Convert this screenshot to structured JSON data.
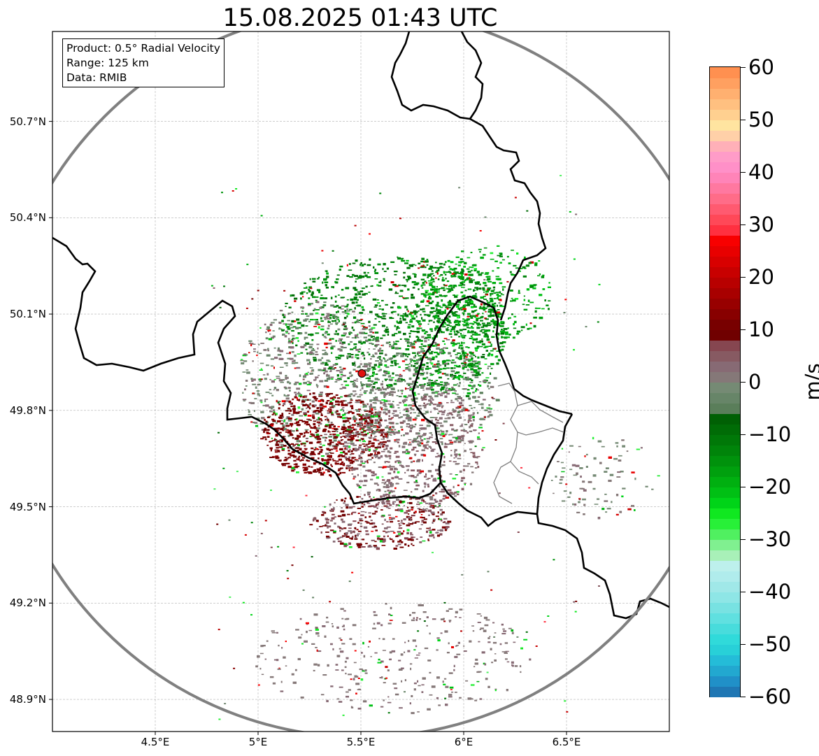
{
  "title": "15.08.2025 01:43 UTC",
  "info": {
    "product": "Product: 0.5° Radial Velocity",
    "range": "Range: 125 km",
    "data": "Data: RMIB"
  },
  "map": {
    "lon_range": [
      4.0,
      7.0
    ],
    "lat_range": [
      48.8,
      50.98
    ],
    "lon_ticks": [
      {
        "value": 4.5,
        "label": "4.5°E"
      },
      {
        "value": 5.0,
        "label": "5°E"
      },
      {
        "value": 5.5,
        "label": "5.5°E"
      },
      {
        "value": 6.0,
        "label": "6°E"
      },
      {
        "value": 6.5,
        "label": "6.5°E"
      }
    ],
    "lat_ticks": [
      {
        "value": 50.7,
        "label": "50.7°N"
      },
      {
        "value": 50.4,
        "label": "50.4°N"
      },
      {
        "value": 50.1,
        "label": "50.1°N"
      },
      {
        "value": 49.8,
        "label": "49.8°N"
      },
      {
        "value": 49.5,
        "label": "49.5°N"
      },
      {
        "value": 49.2,
        "label": "49.2°N"
      },
      {
        "value": 48.9,
        "label": "48.9°N"
      }
    ],
    "radar_site": {
      "lon": 5.505,
      "lat": 49.915
    },
    "range_ring_color": "#808080",
    "site_color": "#e01010",
    "border_color": "#000000",
    "region_border_color": "#808080"
  },
  "colorbar": {
    "unit": "m/s",
    "vmin": -60,
    "vmax": 60,
    "ticks": [
      {
        "value": 60,
        "label": "60"
      },
      {
        "value": 50,
        "label": "50"
      },
      {
        "value": 40,
        "label": "40"
      },
      {
        "value": 30,
        "label": "30"
      },
      {
        "value": 20,
        "label": "20"
      },
      {
        "value": 10,
        "label": "10"
      },
      {
        "value": 0,
        "label": "0"
      },
      {
        "value": -10,
        "label": "−10"
      },
      {
        "value": -20,
        "label": "−20"
      },
      {
        "value": -30,
        "label": "−30"
      },
      {
        "value": -40,
        "label": "−40"
      },
      {
        "value": -50,
        "label": "−50"
      },
      {
        "value": -60,
        "label": "−60"
      }
    ],
    "stops": [
      {
        "from": -60,
        "to": -58,
        "color": "#1f77b4"
      },
      {
        "from": -58,
        "to": -56,
        "color": "#2090c8"
      },
      {
        "from": -56,
        "to": -54,
        "color": "#22a8d0"
      },
      {
        "from": -54,
        "to": -52,
        "color": "#24bcd8"
      },
      {
        "from": -52,
        "to": -50,
        "color": "#28d0d8"
      },
      {
        "from": -50,
        "to": -48,
        "color": "#30dada"
      },
      {
        "from": -48,
        "to": -46,
        "color": "#48dcdc"
      },
      {
        "from": -46,
        "to": -44,
        "color": "#60e0e0"
      },
      {
        "from": -44,
        "to": -42,
        "color": "#78e2e2"
      },
      {
        "from": -42,
        "to": -40,
        "color": "#8ee6e6"
      },
      {
        "from": -40,
        "to": -38,
        "color": "#a0e8e8"
      },
      {
        "from": -38,
        "to": -36,
        "color": "#b0ecec"
      },
      {
        "from": -36,
        "to": -34,
        "color": "#bdf0ec"
      },
      {
        "from": -34,
        "to": -32,
        "color": "#a8f0b8"
      },
      {
        "from": -32,
        "to": -30,
        "color": "#80f090"
      },
      {
        "from": -30,
        "to": -28,
        "color": "#50f060"
      },
      {
        "from": -28,
        "to": -26,
        "color": "#28f038"
      },
      {
        "from": -26,
        "to": -24,
        "color": "#10e820"
      },
      {
        "from": -24,
        "to": -22,
        "color": "#00d418"
      },
      {
        "from": -22,
        "to": -20,
        "color": "#00c014"
      },
      {
        "from": -20,
        "to": -18,
        "color": "#00b010"
      },
      {
        "from": -18,
        "to": -16,
        "color": "#00a00e"
      },
      {
        "from": -16,
        "to": -14,
        "color": "#00920c"
      },
      {
        "from": -14,
        "to": -12,
        "color": "#00840a"
      },
      {
        "from": -12,
        "to": -10,
        "color": "#007808"
      },
      {
        "from": -10,
        "to": -8,
        "color": "#006c06"
      },
      {
        "from": -8,
        "to": -6,
        "color": "#006004"
      },
      {
        "from": -6,
        "to": -4,
        "color": "#5a7e5a"
      },
      {
        "from": -4,
        "to": -2,
        "color": "#678568"
      },
      {
        "from": -2,
        "to": 0,
        "color": "#758a74"
      },
      {
        "from": 0,
        "to": 2,
        "color": "#857878"
      },
      {
        "from": 2,
        "to": 4,
        "color": "#876a74"
      },
      {
        "from": 4,
        "to": 6,
        "color": "#875a62"
      },
      {
        "from": 6,
        "to": 8,
        "color": "#864650"
      },
      {
        "from": 8,
        "to": 10,
        "color": "#700000"
      },
      {
        "from": 10,
        "to": 12,
        "color": "#780000"
      },
      {
        "from": 12,
        "to": 14,
        "color": "#880000"
      },
      {
        "from": 14,
        "to": 16,
        "color": "#980000"
      },
      {
        "from": 16,
        "to": 18,
        "color": "#a80000"
      },
      {
        "from": 18,
        "to": 20,
        "color": "#b80000"
      },
      {
        "from": 20,
        "to": 22,
        "color": "#c80000"
      },
      {
        "from": 22,
        "to": 24,
        "color": "#d80000"
      },
      {
        "from": 24,
        "to": 26,
        "color": "#e80000"
      },
      {
        "from": 26,
        "to": 28,
        "color": "#f80000"
      },
      {
        "from": 28,
        "to": 30,
        "color": "#ff3040"
      },
      {
        "from": 30,
        "to": 32,
        "color": "#ff4858"
      },
      {
        "from": 32,
        "to": 34,
        "color": "#ff5a70"
      },
      {
        "from": 34,
        "to": 36,
        "color": "#ff6c88"
      },
      {
        "from": 36,
        "to": 38,
        "color": "#ff78a0"
      },
      {
        "from": 38,
        "to": 40,
        "color": "#ff84b8"
      },
      {
        "from": 40,
        "to": 42,
        "color": "#ff90c8"
      },
      {
        "from": 42,
        "to": 44,
        "color": "#ff9cc8"
      },
      {
        "from": 44,
        "to": 46,
        "color": "#ffb0b8"
      },
      {
        "from": 46,
        "to": 48,
        "color": "#ffd0a8"
      },
      {
        "from": 48,
        "to": 50,
        "color": "#ffe4a0"
      },
      {
        "from": 50,
        "to": 52,
        "color": "#ffd090"
      },
      {
        "from": 52,
        "to": 54,
        "color": "#ffc080"
      },
      {
        "from": 54,
        "to": 56,
        "color": "#ffb070"
      },
      {
        "from": 56,
        "to": 58,
        "color": "#ffa060"
      },
      {
        "from": 58,
        "to": 60,
        "color": "#ff9050"
      }
    ]
  }
}
